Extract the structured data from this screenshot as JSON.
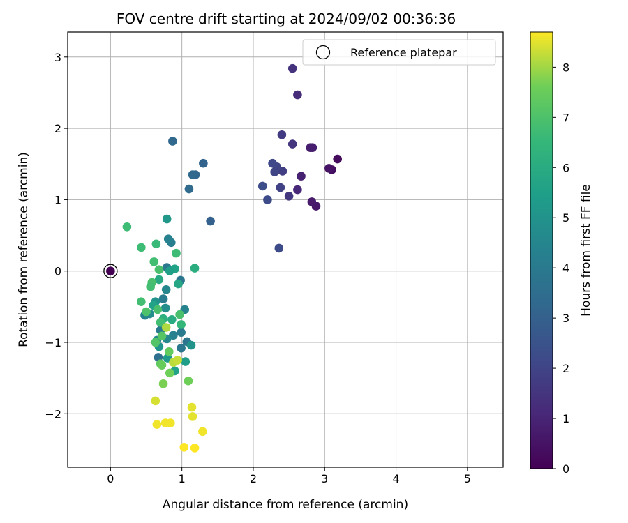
{
  "chart_data": {
    "type": "scatter",
    "title": "FOV centre drift starting at 2024/09/02 00:36:36",
    "xlabel": "Angular distance from reference (arcmin)",
    "ylabel": "Rotation from reference (arcmin)",
    "xlim": [
      -0.6,
      5.5
    ],
    "ylim": [
      -2.75,
      3.35
    ],
    "xticks": [
      0,
      1,
      2,
      3,
      4,
      5
    ],
    "xtick_labels": [
      "0",
      "1",
      "2",
      "3",
      "4",
      "5"
    ],
    "yticks": [
      -2,
      -1,
      0,
      1,
      2,
      3
    ],
    "ytick_labels": [
      "−2",
      "−1",
      "0",
      "1",
      "2",
      "3"
    ],
    "grid": true,
    "legend": {
      "placement": "top-right",
      "entries": [
        "Reference platepar"
      ]
    },
    "reference_point": {
      "x": 0,
      "y": 0
    },
    "colorbar": {
      "label": "Hours from first FF file",
      "colormap": "viridis",
      "range": [
        0,
        8.7
      ],
      "ticks": [
        0,
        1,
        2,
        3,
        4,
        5,
        6,
        7,
        8
      ],
      "tick_labels": [
        "0",
        "1",
        "2",
        "3",
        "4",
        "5",
        "6",
        "7",
        "8"
      ]
    },
    "series": [
      {
        "points": [
          {
            "x": 0.0,
            "y": 0.0,
            "c": 0.0
          },
          {
            "x": 3.18,
            "y": 1.57,
            "c": 0.3
          },
          {
            "x": 3.1,
            "y": 1.42,
            "c": 0.4
          },
          {
            "x": 3.06,
            "y": 1.44,
            "c": 0.5
          },
          {
            "x": 2.88,
            "y": 0.91,
            "c": 0.6
          },
          {
            "x": 2.82,
            "y": 0.97,
            "c": 0.7
          },
          {
            "x": 2.8,
            "y": 1.73,
            "c": 0.8
          },
          {
            "x": 2.83,
            "y": 1.73,
            "c": 0.8
          },
          {
            "x": 2.67,
            "y": 1.33,
            "c": 0.9
          },
          {
            "x": 2.62,
            "y": 1.14,
            "c": 1.1
          },
          {
            "x": 2.62,
            "y": 2.47,
            "c": 1.2
          },
          {
            "x": 2.55,
            "y": 2.84,
            "c": 1.4
          },
          {
            "x": 2.55,
            "y": 1.78,
            "c": 1.5
          },
          {
            "x": 2.5,
            "y": 1.05,
            "c": 1.6
          },
          {
            "x": 2.4,
            "y": 1.91,
            "c": 1.7
          },
          {
            "x": 2.41,
            "y": 1.4,
            "c": 1.8
          },
          {
            "x": 2.38,
            "y": 1.17,
            "c": 1.9
          },
          {
            "x": 2.33,
            "y": 1.46,
            "c": 2.0
          },
          {
            "x": 2.3,
            "y": 1.39,
            "c": 2.0
          },
          {
            "x": 2.27,
            "y": 1.51,
            "c": 2.1
          },
          {
            "x": 2.2,
            "y": 1.0,
            "c": 2.2
          },
          {
            "x": 2.13,
            "y": 1.19,
            "c": 2.3
          },
          {
            "x": 2.36,
            "y": 0.32,
            "c": 2.2
          },
          {
            "x": 1.4,
            "y": 0.7,
            "c": 3.0
          },
          {
            "x": 1.3,
            "y": 1.51,
            "c": 3.1
          },
          {
            "x": 1.19,
            "y": 1.35,
            "c": 3.2
          },
          {
            "x": 1.15,
            "y": 1.35,
            "c": 3.3
          },
          {
            "x": 1.1,
            "y": 1.15,
            "c": 3.4
          },
          {
            "x": 0.87,
            "y": 1.82,
            "c": 3.3
          },
          {
            "x": 0.85,
            "y": 0.4,
            "c": 4.2
          },
          {
            "x": 0.81,
            "y": 0.45,
            "c": 4.3
          },
          {
            "x": 0.79,
            "y": 0.05,
            "c": 3.9
          },
          {
            "x": 0.98,
            "y": -0.13,
            "c": 3.8
          },
          {
            "x": 0.74,
            "y": -0.39,
            "c": 4.1
          },
          {
            "x": 0.77,
            "y": -0.52,
            "c": 4.8
          },
          {
            "x": 0.78,
            "y": -0.26,
            "c": 4.5
          },
          {
            "x": 1.04,
            "y": -0.54,
            "c": 4.4
          },
          {
            "x": 0.99,
            "y": -0.86,
            "c": 4.0
          },
          {
            "x": 0.88,
            "y": -0.9,
            "c": 4.3
          },
          {
            "x": 0.79,
            "y": -0.95,
            "c": 4.6
          },
          {
            "x": 0.99,
            "y": -1.08,
            "c": 3.9
          },
          {
            "x": 1.07,
            "y": -0.99,
            "c": 3.8
          },
          {
            "x": 1.13,
            "y": -1.04,
            "c": 5.0
          },
          {
            "x": 0.7,
            "y": -0.83,
            "c": 4.0
          },
          {
            "x": 0.65,
            "y": -0.97,
            "c": 4.6
          },
          {
            "x": 0.68,
            "y": -1.06,
            "c": 5.1
          },
          {
            "x": 0.67,
            "y": -1.21,
            "c": 3.6
          },
          {
            "x": 0.8,
            "y": -1.22,
            "c": 5.3
          },
          {
            "x": 1.05,
            "y": -1.27,
            "c": 5.4
          },
          {
            "x": 0.9,
            "y": -1.4,
            "c": 5.6
          },
          {
            "x": 0.63,
            "y": -0.43,
            "c": 5.0
          },
          {
            "x": 0.55,
            "y": -0.6,
            "c": 4.8
          },
          {
            "x": 0.48,
            "y": -0.62,
            "c": 4.4
          },
          {
            "x": 0.79,
            "y": 0.73,
            "c": 5.2
          },
          {
            "x": 0.9,
            "y": 0.03,
            "c": 5.6
          },
          {
            "x": 0.83,
            "y": 0.0,
            "c": 5.5
          },
          {
            "x": 0.95,
            "y": -0.18,
            "c": 5.8
          },
          {
            "x": 0.68,
            "y": -0.12,
            "c": 5.9
          },
          {
            "x": 0.6,
            "y": -0.48,
            "c": 5.6
          },
          {
            "x": 0.86,
            "y": -0.68,
            "c": 6.0
          },
          {
            "x": 0.74,
            "y": -0.67,
            "c": 6.2
          },
          {
            "x": 0.99,
            "y": -0.75,
            "c": 6.5
          },
          {
            "x": 1.18,
            "y": 0.04,
            "c": 6.1
          },
          {
            "x": 0.92,
            "y": 0.25,
            "c": 6.7
          },
          {
            "x": 0.64,
            "y": 0.38,
            "c": 6.6
          },
          {
            "x": 0.61,
            "y": 0.13,
            "c": 6.8
          },
          {
            "x": 0.68,
            "y": 0.02,
            "c": 6.9
          },
          {
            "x": 0.58,
            "y": -0.16,
            "c": 6.9
          },
          {
            "x": 0.56,
            "y": -0.22,
            "c": 6.8
          },
          {
            "x": 0.43,
            "y": 0.33,
            "c": 6.7
          },
          {
            "x": 0.23,
            "y": 0.62,
            "c": 6.7
          },
          {
            "x": 0.43,
            "y": -0.43,
            "c": 6.8
          },
          {
            "x": 0.5,
            "y": -0.57,
            "c": 7.0
          },
          {
            "x": 0.66,
            "y": -0.54,
            "c": 6.9
          },
          {
            "x": 0.7,
            "y": -0.72,
            "c": 6.8
          },
          {
            "x": 0.97,
            "y": -0.61,
            "c": 6.9
          },
          {
            "x": 0.63,
            "y": -1.0,
            "c": 7.1
          },
          {
            "x": 0.72,
            "y": -0.91,
            "c": 7.2
          },
          {
            "x": 0.82,
            "y": -1.13,
            "c": 7.4
          },
          {
            "x": 0.7,
            "y": -1.3,
            "c": 7.3
          },
          {
            "x": 0.72,
            "y": -1.32,
            "c": 7.5
          },
          {
            "x": 0.83,
            "y": -1.43,
            "c": 7.6
          },
          {
            "x": 0.74,
            "y": -1.58,
            "c": 7.7
          },
          {
            "x": 1.09,
            "y": -1.54,
            "c": 7.6
          },
          {
            "x": 0.78,
            "y": -0.79,
            "c": 8.1
          },
          {
            "x": 0.88,
            "y": -1.28,
            "c": 8.2
          },
          {
            "x": 0.94,
            "y": -1.25,
            "c": 8.3
          },
          {
            "x": 0.63,
            "y": -1.82,
            "c": 8.4
          },
          {
            "x": 1.14,
            "y": -1.91,
            "c": 8.5
          },
          {
            "x": 1.15,
            "y": -2.04,
            "c": 8.5
          },
          {
            "x": 0.65,
            "y": -2.15,
            "c": 8.6
          },
          {
            "x": 0.77,
            "y": -2.13,
            "c": 8.6
          },
          {
            "x": 0.84,
            "y": -2.13,
            "c": 8.6
          },
          {
            "x": 1.29,
            "y": -2.25,
            "c": 8.6
          },
          {
            "x": 1.03,
            "y": -2.47,
            "c": 8.7
          },
          {
            "x": 1.18,
            "y": -2.48,
            "c": 8.7
          }
        ]
      }
    ]
  }
}
